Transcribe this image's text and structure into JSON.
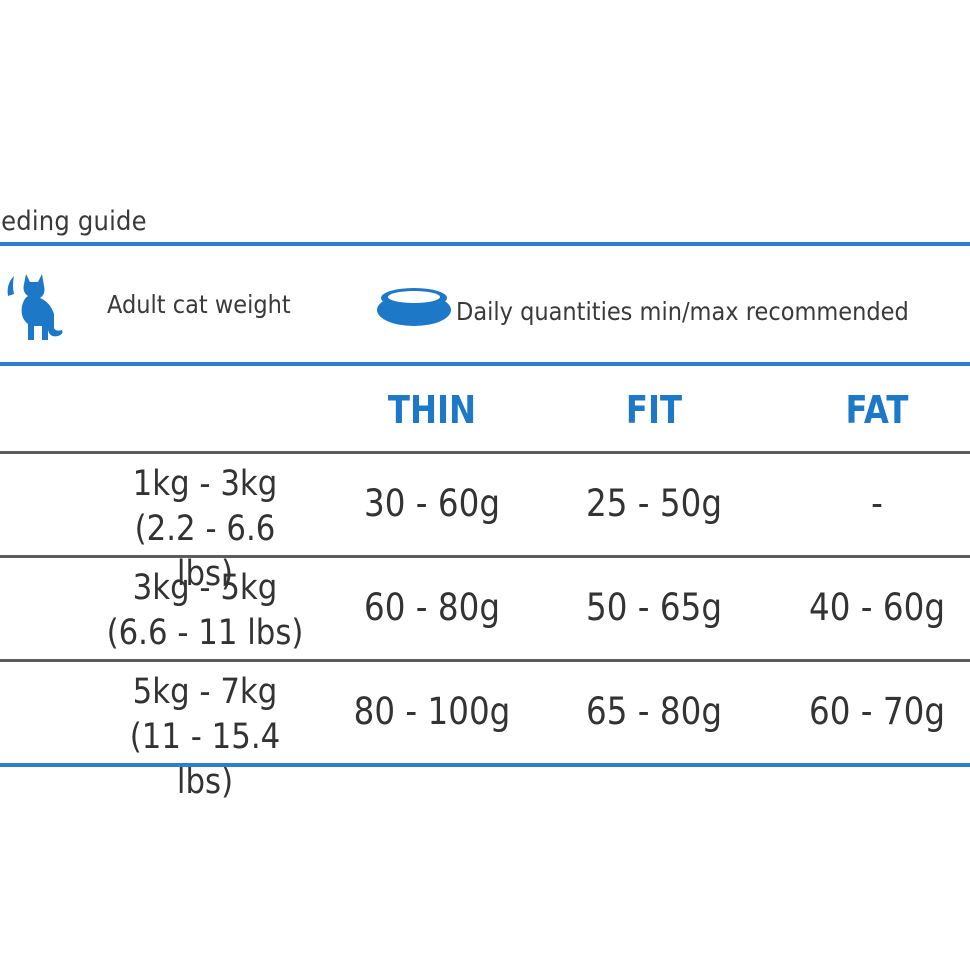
{
  "title": "eeding guide",
  "header": {
    "weight_label": "Adult cat weight",
    "quantity_label": "Daily quantities min/max recommended",
    "cat_icon": "cat-icon",
    "bowl_icon": "food-bowl-icon"
  },
  "columns": [
    "THIN",
    "FIT",
    "FAT"
  ],
  "rows": [
    {
      "kg": "1kg - 3kg",
      "lbs": "(2.2 - 6.6 lbs)",
      "values": [
        "30 - 60g",
        "25 - 50g",
        "-"
      ]
    },
    {
      "kg": "3kg - 5kg",
      "lbs": "(6.6 - 11 lbs)",
      "values": [
        "60 - 80g",
        "50 - 65g",
        "40 - 60g"
      ]
    },
    {
      "kg": "5kg - 7kg",
      "lbs": "(11 - 15.4 lbs)",
      "values": [
        "80 - 100g",
        "65 - 80g",
        "60 - 70g"
      ]
    }
  ],
  "colors": {
    "accent": "#1d78c8",
    "rule_blue": "#2a7fd0",
    "rule_gray": "#5c5c5c",
    "text": "#333333"
  }
}
